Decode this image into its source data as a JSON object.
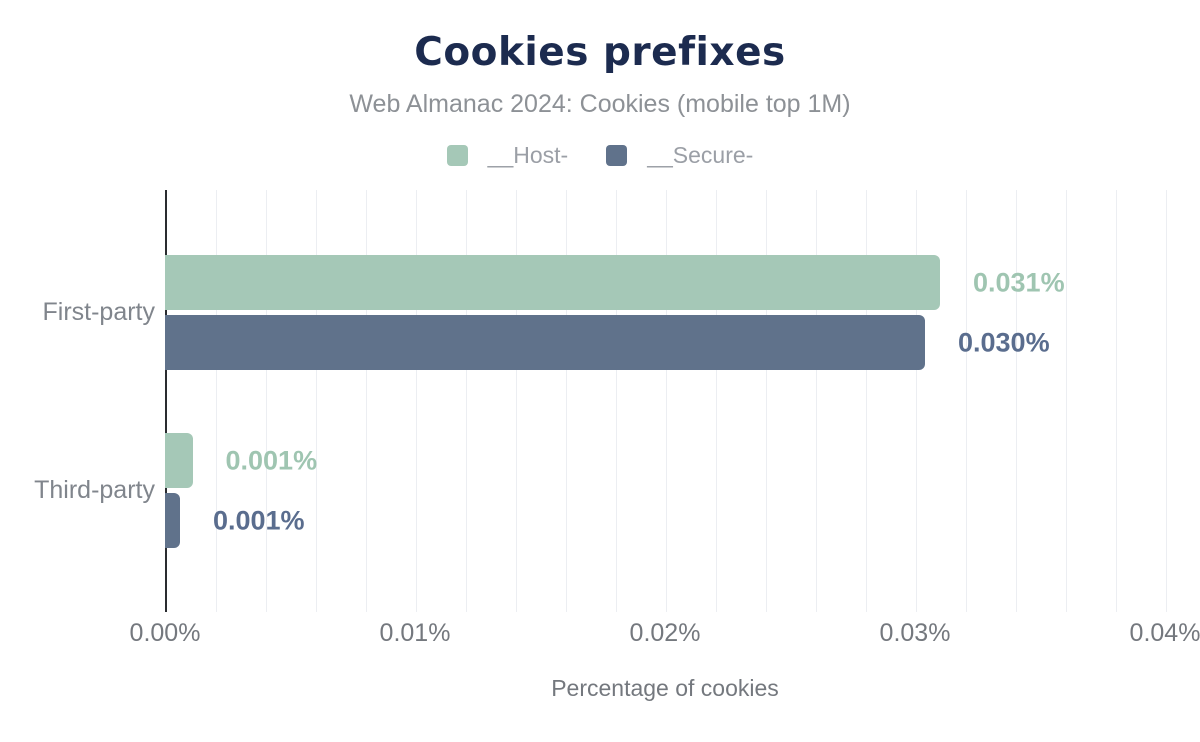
{
  "header": {
    "title": "Cookies prefixes",
    "subtitle": "Web Almanac 2024: Cookies (mobile top 1M)"
  },
  "colors": {
    "title_navy": "#1c2b4f",
    "host_green": "#a5c8b7",
    "secure_slate": "#60728b",
    "host_label_green": "#9fc5b1",
    "secure_label_slate": "#5a6d8e",
    "grid_line": "#eceef2",
    "axis_line": "#2a2c30",
    "muted_text": "#8d9196"
  },
  "chart_data": {
    "type": "bar",
    "orientation": "horizontal",
    "title": "Cookies prefixes",
    "subtitle": "Web Almanac 2024: Cookies (mobile top 1M)",
    "xlabel": "Percentage of cookies",
    "ylabel": "",
    "unit": "%",
    "categories": [
      "First-party",
      "Third-party"
    ],
    "series": [
      {
        "name": "__Host-",
        "color": "#a5c8b7",
        "label_color": "#9fc5b1",
        "values": [
          0.031,
          0.0011
        ],
        "labels": [
          "0.031%",
          "0.001%"
        ]
      },
      {
        "name": "__Secure-",
        "color": "#60728b",
        "label_color": "#5a6d8e",
        "values": [
          0.0304,
          0.0006
        ],
        "labels": [
          "0.030%",
          "0.001%"
        ]
      }
    ],
    "xlim": [
      0,
      0.04
    ],
    "xtick_labels": [
      "0.00%",
      "0.01%",
      "0.02%",
      "0.03%",
      "0.04%"
    ],
    "grid": {
      "vertical": true,
      "interval": 0.002
    },
    "legend_position": "top"
  }
}
